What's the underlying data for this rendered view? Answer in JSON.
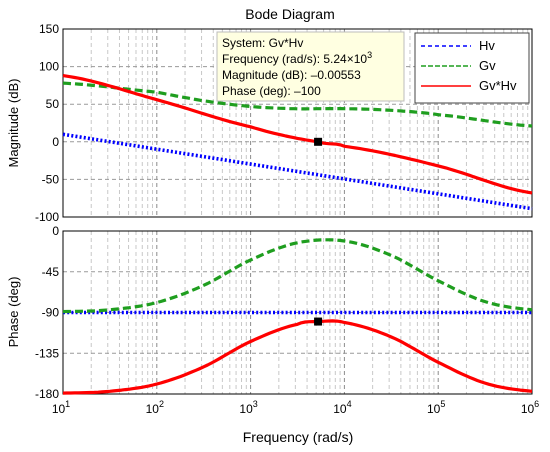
{
  "chart_data": [
    {
      "type": "line",
      "title": "Bode Diagram",
      "xlabel": "",
      "ylabel": "Magnitude (dB)",
      "xscale": "log",
      "xlim": [
        10,
        1000000
      ],
      "ylim": [
        -100,
        150
      ],
      "yticks": [
        "150",
        "100",
        "50",
        "0",
        "-50",
        "-100"
      ],
      "grid": true,
      "series": [
        {
          "name": "Hv",
          "color": "#0000ff",
          "style": "dotted",
          "x": [
            10,
            1000000
          ],
          "y": [
            10,
            -89
          ]
        },
        {
          "name": "Gv",
          "color": "#1f9e1f",
          "style": "dashed",
          "x": [
            10,
            100,
            300,
            1000,
            3000,
            5240,
            10000,
            30000,
            100000,
            1000000
          ],
          "y": [
            78,
            66,
            55,
            47,
            44,
            44,
            44,
            42,
            36,
            21
          ]
        },
        {
          "name": "Gv*Hv",
          "color": "#ff0000",
          "style": "solid",
          "x": [
            10,
            100,
            1000,
            5240,
            10000,
            100000,
            1000000
          ],
          "y": [
            88,
            56,
            20,
            -0.00553,
            -6,
            -32,
            -68
          ]
        }
      ],
      "legend": {
        "position": "top-right",
        "entries": [
          "Hv",
          "Gv",
          "Gv*Hv"
        ]
      },
      "datatip": {
        "x": 5240,
        "y": -0.00553,
        "lines": [
          "System: Gv*Hv",
          "Frequency (rad/s): 5.24×10",
          "Magnitude (dB): –0.00553",
          "Phase (deg): –100"
        ],
        "exponent": "3"
      }
    },
    {
      "type": "line",
      "xlabel": "Frequency  (rad/s)",
      "ylabel": "Phase (deg)",
      "xscale": "log",
      "xlim": [
        10,
        1000000
      ],
      "ylim": [
        -180,
        0
      ],
      "yticks": [
        "0",
        "-45",
        "-90",
        "-135",
        "-180"
      ],
      "xticks": [
        {
          "base": "10",
          "exp": "1",
          "value": 10
        },
        {
          "base": "10",
          "exp": "2",
          "value": 100
        },
        {
          "base": "10",
          "exp": "3",
          "value": 1000
        },
        {
          "base": "10",
          "exp": "4",
          "value": 10000
        },
        {
          "base": "10",
          "exp": "5",
          "value": 100000
        },
        {
          "base": "10",
          "exp": "6",
          "value": 1000000
        }
      ],
      "grid": true,
      "series": [
        {
          "name": "Hv",
          "color": "#0000ff",
          "style": "dotted",
          "x": [
            10,
            1000000
          ],
          "y": [
            -90,
            -90
          ]
        },
        {
          "name": "Gv",
          "color": "#1f9e1f",
          "style": "dashed",
          "x": [
            10,
            31.6,
            100,
            316,
            1000,
            3160,
            10000,
            31600,
            100000,
            316000,
            1000000
          ],
          "y": [
            -89,
            -87,
            -79,
            -60,
            -32,
            -13,
            -11,
            -27,
            -55,
            -78,
            -87
          ]
        },
        {
          "name": "Gv*Hv",
          "color": "#ff0000",
          "style": "solid",
          "x": [
            10,
            31.6,
            100,
            316,
            1000,
            3160,
            5240,
            10000,
            31600,
            100000,
            316000,
            1000000
          ],
          "y": [
            -179,
            -177,
            -169,
            -150,
            -122,
            -103,
            -100,
            -101,
            -117,
            -145,
            -168,
            -177
          ]
        }
      ],
      "marker": {
        "x": 5240,
        "y": -100
      }
    }
  ]
}
